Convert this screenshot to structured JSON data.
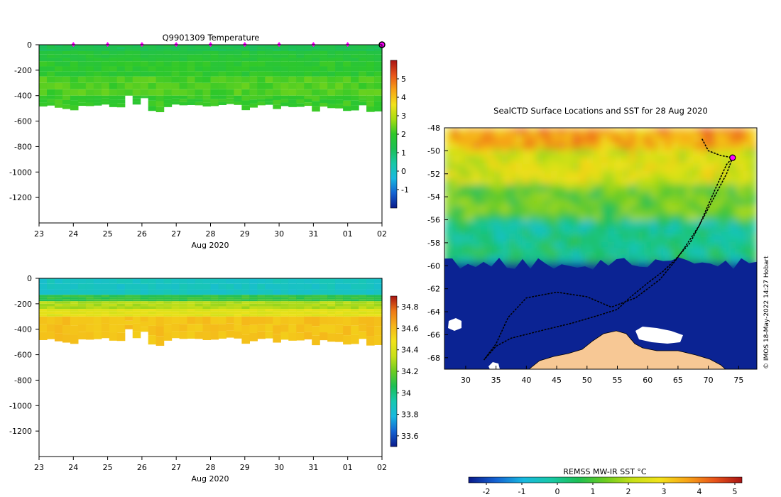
{
  "chart_data": [
    {
      "type": "heatmap",
      "id": "temperature-section",
      "title": "Q9901309  Temperature",
      "xlabel": "Aug 2020",
      "x_tick_labels": [
        "23",
        "24",
        "25",
        "26",
        "27",
        "28",
        "29",
        "30",
        "31",
        "01",
        "02"
      ],
      "xlim": [
        23,
        33
      ],
      "ylim": [
        -1400,
        0
      ],
      "y_ticks": [
        0,
        -200,
        -400,
        -600,
        -800,
        -1000,
        -1200
      ],
      "y_tick_labels": [
        "0",
        "-200",
        "-400",
        "-600",
        "-800",
        "-1000",
        "-1200"
      ],
      "colorbar": {
        "range": [
          -2,
          6
        ],
        "ticks": [
          -1,
          0,
          1,
          2,
          3,
          4,
          5
        ],
        "tick_labels": [
          "-1",
          "0",
          "1",
          "2",
          "3",
          "4",
          "5"
        ],
        "stops": [
          "#0a1a8a",
          "#1462d2",
          "#18b8e0",
          "#18c8a8",
          "#1cbf55",
          "#2ec82a",
          "#a6dc12",
          "#f2e21a",
          "#f7a317",
          "#e8541a",
          "#a81414"
        ]
      },
      "profile_time_markers": [
        24,
        25,
        26,
        27,
        28,
        29,
        30,
        31,
        32
      ],
      "latest_profile_marker": 33,
      "profile_max_depths": [
        485,
        478,
        495,
        505,
        515,
        480,
        482,
        478,
        470,
        490,
        492,
        400,
        470,
        420,
        520,
        530,
        490,
        470,
        476,
        474,
        476,
        485,
        482,
        474,
        466,
        473,
        514,
        494,
        476,
        472,
        505,
        482,
        490,
        488,
        480,
        525,
        486,
        498,
        500,
        520,
        516,
        476,
        528,
        524
      ],
      "depth_layers": [
        {
          "from_depth": 0,
          "to_depth": 50,
          "value": 1.3
        },
        {
          "from_depth": 50,
          "to_depth": 130,
          "value": 1.7
        },
        {
          "from_depth": 130,
          "to_depth": 250,
          "value": 1.9
        },
        {
          "from_depth": 250,
          "to_depth": 400,
          "value": 2.2
        },
        {
          "from_depth": 400,
          "to_depth": 999,
          "value": 2.05
        }
      ]
    },
    {
      "type": "heatmap",
      "id": "salinity-section",
      "xlabel": "Aug 2020",
      "x_tick_labels": [
        "23",
        "24",
        "25",
        "26",
        "27",
        "28",
        "29",
        "30",
        "31",
        "01",
        "02"
      ],
      "xlim": [
        23,
        33
      ],
      "ylim": [
        -1400,
        0
      ],
      "y_ticks": [
        0,
        -200,
        -400,
        -600,
        -800,
        -1000,
        -1200
      ],
      "y_tick_labels": [
        "0",
        "-200",
        "-400",
        "-600",
        "-800",
        "-1000",
        "-1200"
      ],
      "colorbar": {
        "range": [
          33.5,
          34.9
        ],
        "ticks": [
          33.6,
          33.8,
          34,
          34.2,
          34.4,
          34.6,
          34.8
        ],
        "tick_labels": [
          "33.6",
          "33.8",
          "34",
          "34.2",
          "34.4",
          "34.6",
          "34.8"
        ],
        "stops": [
          "#0a1a8a",
          "#1462d2",
          "#18b8e0",
          "#18c8b0",
          "#1cbf55",
          "#6ccc20",
          "#c8e018",
          "#f2e21a",
          "#f5b51a",
          "#ee7a18",
          "#a81414"
        ]
      },
      "depth_layers": [
        {
          "from_depth": 0,
          "to_depth": 130,
          "value": 33.87
        },
        {
          "from_depth": 130,
          "to_depth": 180,
          "value": 34.1
        },
        {
          "from_depth": 180,
          "to_depth": 240,
          "value": 34.3
        },
        {
          "from_depth": 240,
          "to_depth": 300,
          "value": 34.42
        },
        {
          "from_depth": 300,
          "to_depth": 999,
          "value": 34.58
        }
      ]
    },
    {
      "type": "heatmap",
      "id": "sst-map",
      "title": "SealCTD Surface Locations and SST for 28 Aug 2020",
      "x_ticks": [
        30,
        35,
        40,
        45,
        50,
        55,
        60,
        65,
        70,
        75
      ],
      "x_tick_labels": [
        "30",
        "35",
        "40",
        "45",
        "50",
        "55",
        "60",
        "65",
        "70",
        "75"
      ],
      "y_ticks": [
        -48,
        -50,
        -52,
        -54,
        -56,
        -58,
        -60,
        -62,
        -64,
        -66,
        -68
      ],
      "y_tick_labels": [
        "-48",
        "-50",
        "-52",
        "-54",
        "-56",
        "-58",
        "-60",
        "-62",
        "-64",
        "-66",
        "-68"
      ],
      "xlim": [
        26.5,
        78
      ],
      "ylim": [
        -69,
        -48
      ],
      "sst_zones": [
        {
          "lat_from": -48,
          "lat_to": -50,
          "value": 3.6
        },
        {
          "lat_from": -50,
          "lat_to": -53,
          "value": 2.4
        },
        {
          "lat_from": -53,
          "lat_to": -56,
          "value": 1.2
        },
        {
          "lat_from": -56,
          "lat_to": -59.5,
          "value": 0.1
        },
        {
          "lat_from": -59.5,
          "lat_to": -69,
          "value": -2.4
        }
      ],
      "seal_track": [
        [
          69,
          -49
        ],
        [
          70,
          -50
        ],
        [
          72,
          -50.4
        ],
        [
          74,
          -50.6
        ],
        [
          73,
          -52
        ],
        [
          71,
          -54
        ],
        [
          69,
          -56
        ],
        [
          67,
          -58
        ],
        [
          64.5,
          -59.5
        ],
        [
          62.5,
          -60.5
        ],
        [
          60,
          -61.5
        ],
        [
          57,
          -62.8
        ],
        [
          55,
          -63.8
        ],
        [
          52,
          -64.3
        ],
        [
          47.5,
          -65
        ],
        [
          42,
          -65.7
        ],
        [
          37.5,
          -66.3
        ],
        [
          35,
          -67
        ],
        [
          33,
          -68.2
        ],
        [
          35,
          -66.8
        ],
        [
          37,
          -64.5
        ],
        [
          40,
          -62.8
        ],
        [
          45,
          -62.3
        ],
        [
          50,
          -62.7
        ],
        [
          54,
          -63.6
        ],
        [
          58,
          -62.8
        ],
        [
          62,
          -61.2
        ],
        [
          64.5,
          -59.6
        ],
        [
          66,
          -58.5
        ],
        [
          68.5,
          -56.5
        ],
        [
          71,
          -53.5
        ],
        [
          73,
          -51.2
        ],
        [
          74,
          -50.6
        ]
      ],
      "latest_position": [
        74,
        -50.6
      ],
      "colorbar_title": "REMSS MW-IR SST °C",
      "colorbar": {
        "range": [
          -2.5,
          5.2
        ],
        "ticks": [
          -2,
          -1,
          0,
          1,
          2,
          3,
          4,
          5
        ],
        "tick_labels": [
          "-2",
          "-1",
          "0",
          "1",
          "2",
          "3",
          "4",
          "5"
        ],
        "stops": [
          "#0a1a8a",
          "#1462d2",
          "#18b8e0",
          "#18c8a8",
          "#1cbf55",
          "#6ccc20",
          "#c8e018",
          "#f2e21a",
          "#f7a317",
          "#e8541a",
          "#a81414"
        ]
      },
      "credit": "© IMOS 18-May-2022 14:27 Hobart"
    }
  ],
  "colors": {
    "land": "#f7c895",
    "ocean_cold": "#0a1a8a",
    "marker": "#ff00ff",
    "track": "#000000"
  }
}
